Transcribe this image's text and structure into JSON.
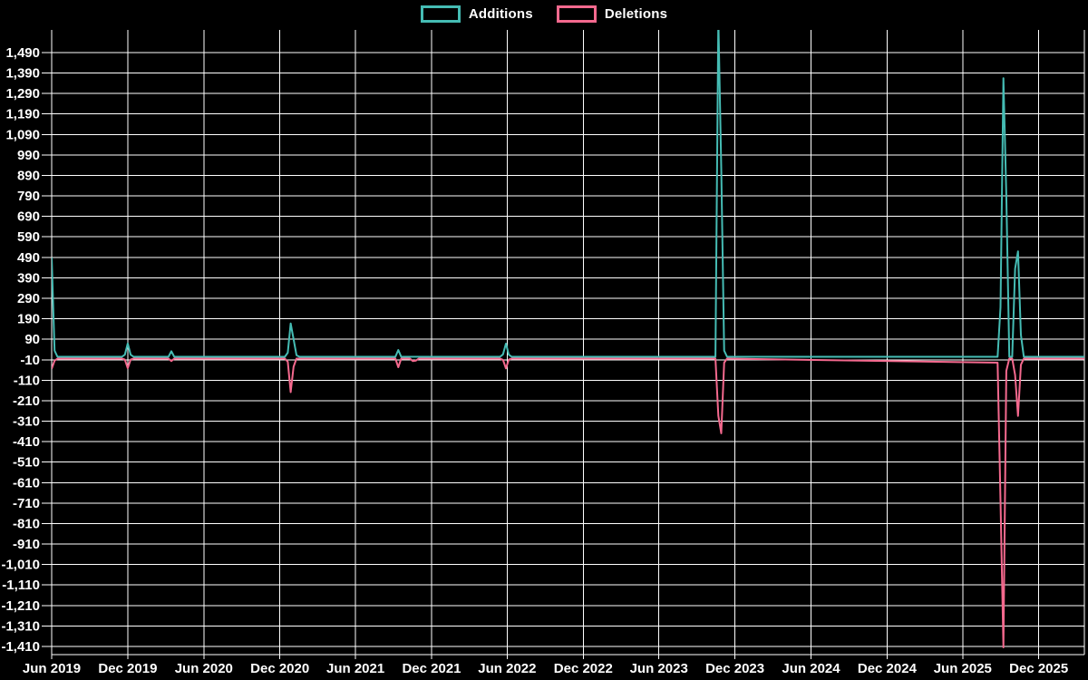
{
  "legend": {
    "items": [
      {
        "label": "Additions",
        "color": "#45bcb4"
      },
      {
        "label": "Deletions",
        "color": "#f4698e"
      }
    ]
  },
  "chart_data": {
    "type": "line",
    "title": "",
    "xlabel": "",
    "ylabel": "",
    "grid": "on",
    "legend_position": "top-center",
    "background_color": "#000000",
    "gridline_color": "#ffffff",
    "baseline_value": 0,
    "x_axis": {
      "tick_labels": [
        "Jun 2019",
        "Dec 2019",
        "Jun 2020",
        "Dec 2020",
        "Jun 2021",
        "Dec 2021",
        "Jun 2022",
        "Dec 2022",
        "Jun 2023",
        "Dec 2023",
        "Jun 2024",
        "Dec 2024",
        "Jun 2025",
        "Dec 2025"
      ],
      "tick_dates": [
        "2019-06-01",
        "2019-12-01",
        "2020-06-01",
        "2020-12-01",
        "2021-06-01",
        "2021-12-01",
        "2022-06-01",
        "2022-12-01",
        "2023-06-01",
        "2023-12-01",
        "2024-06-01",
        "2024-12-01",
        "2025-06-01",
        "2025-12-01"
      ]
    },
    "y_axis": {
      "tick_labels": [
        "1,490",
        "1,390",
        "1,290",
        "1,190",
        "1,090",
        "990",
        "890",
        "790",
        "690",
        "590",
        "490",
        "390",
        "290",
        "190",
        "90",
        "-10",
        "-110",
        "-210",
        "-310",
        "-410",
        "-510",
        "-610",
        "-710",
        "-810",
        "-910",
        "-1,010",
        "-1,110",
        "-1,210",
        "-1,310",
        "-1,410"
      ],
      "tick_values": [
        1490,
        1390,
        1290,
        1190,
        1090,
        990,
        890,
        790,
        690,
        590,
        490,
        390,
        290,
        190,
        90,
        -10,
        -110,
        -210,
        -310,
        -410,
        -510,
        -610,
        -710,
        -810,
        -910,
        -1010,
        -1110,
        -1210,
        -1310,
        -1410
      ]
    },
    "series": [
      {
        "name": "Additions",
        "color": "#45bcb4",
        "points": [
          [
            "2019-06-01",
            485
          ],
          [
            "2019-06-08",
            30
          ],
          [
            "2019-06-15",
            0
          ],
          [
            "2019-11-17",
            0
          ],
          [
            "2019-11-24",
            10
          ],
          [
            "2019-12-01",
            65
          ],
          [
            "2019-12-08",
            10
          ],
          [
            "2019-12-15",
            0
          ],
          [
            "2020-03-08",
            0
          ],
          [
            "2020-03-15",
            27
          ],
          [
            "2020-03-22",
            0
          ],
          [
            "2020-12-13",
            0
          ],
          [
            "2020-12-20",
            20
          ],
          [
            "2020-12-27",
            163
          ],
          [
            "2021-01-03",
            86
          ],
          [
            "2021-01-10",
            8
          ],
          [
            "2021-01-17",
            0
          ],
          [
            "2021-09-05",
            0
          ],
          [
            "2021-09-12",
            33
          ],
          [
            "2021-09-19",
            0
          ],
          [
            "2022-05-15",
            0
          ],
          [
            "2022-05-22",
            12
          ],
          [
            "2022-05-29",
            64
          ],
          [
            "2022-06-05",
            10
          ],
          [
            "2022-06-12",
            0
          ],
          [
            "2023-10-15",
            0
          ],
          [
            "2023-10-22",
            1650
          ],
          [
            "2023-10-29",
            920
          ],
          [
            "2023-11-05",
            30
          ],
          [
            "2023-11-12",
            0
          ],
          [
            "2025-08-24",
            0
          ],
          [
            "2025-08-31",
            242
          ],
          [
            "2025-09-07",
            1360
          ],
          [
            "2025-09-14",
            790
          ],
          [
            "2025-09-21",
            0
          ],
          [
            "2025-09-28",
            0
          ],
          [
            "2025-10-05",
            430
          ],
          [
            "2025-10-12",
            515
          ],
          [
            "2025-10-19",
            107
          ],
          [
            "2025-10-26",
            0
          ],
          [
            "2026-04-01",
            0
          ]
        ]
      },
      {
        "name": "Deletions",
        "color": "#f4698e",
        "points": [
          [
            "2019-06-01",
            -50
          ],
          [
            "2019-06-08",
            -10
          ],
          [
            "2019-06-15",
            0
          ],
          [
            "2019-11-17",
            0
          ],
          [
            "2019-11-24",
            -5
          ],
          [
            "2019-12-01",
            -47
          ],
          [
            "2019-12-08",
            -5
          ],
          [
            "2019-12-15",
            0
          ],
          [
            "2020-03-08",
            0
          ],
          [
            "2020-03-15",
            -12
          ],
          [
            "2020-03-22",
            0
          ],
          [
            "2020-12-13",
            0
          ],
          [
            "2020-12-20",
            -15
          ],
          [
            "2020-12-27",
            -164
          ],
          [
            "2021-01-03",
            -40
          ],
          [
            "2021-01-10",
            0
          ],
          [
            "2021-09-05",
            0
          ],
          [
            "2021-09-12",
            -42
          ],
          [
            "2021-09-19",
            0
          ],
          [
            "2021-10-10",
            0
          ],
          [
            "2021-10-17",
            -12
          ],
          [
            "2021-10-24",
            -10
          ],
          [
            "2021-10-31",
            0
          ],
          [
            "2022-05-15",
            0
          ],
          [
            "2022-05-22",
            -6
          ],
          [
            "2022-05-29",
            -48
          ],
          [
            "2022-06-05",
            -5
          ],
          [
            "2022-06-12",
            0
          ],
          [
            "2023-10-15",
            0
          ],
          [
            "2023-10-22",
            -280
          ],
          [
            "2023-10-29",
            -365
          ],
          [
            "2023-11-05",
            -20
          ],
          [
            "2023-11-12",
            0
          ],
          [
            "2025-08-24",
            -20
          ],
          [
            "2025-08-31",
            -697
          ],
          [
            "2025-09-07",
            -1410
          ],
          [
            "2025-09-14",
            -60
          ],
          [
            "2025-09-21",
            0
          ],
          [
            "2025-09-28",
            0
          ],
          [
            "2025-10-05",
            -80
          ],
          [
            "2025-10-12",
            -280
          ],
          [
            "2025-10-19",
            -30
          ],
          [
            "2025-10-26",
            0
          ],
          [
            "2026-04-01",
            0
          ]
        ]
      }
    ]
  }
}
